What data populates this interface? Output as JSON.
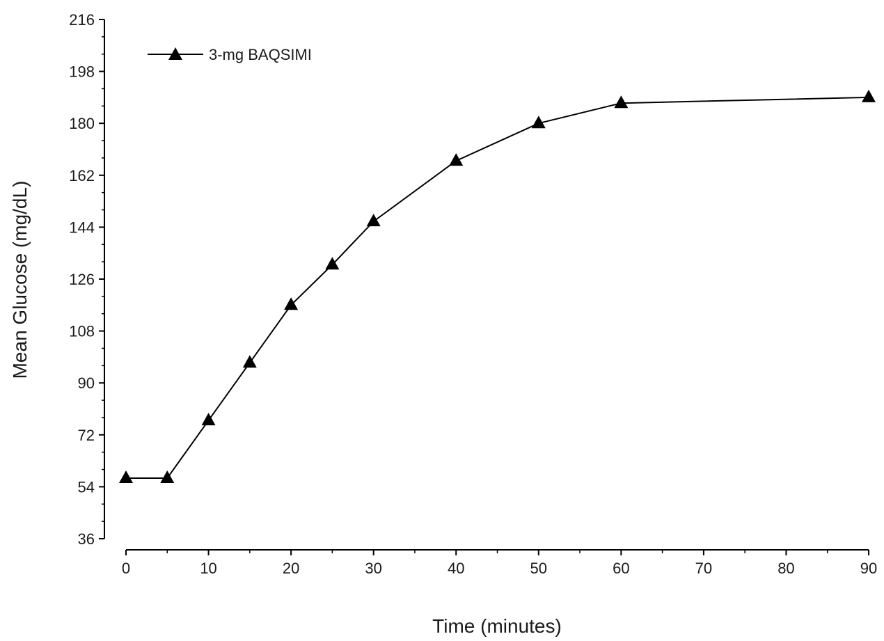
{
  "chart_data": {
    "type": "line",
    "title": "",
    "xlabel": "Time (minutes)",
    "ylabel": "Mean Glucose (mg/dL)",
    "xlim": [
      0,
      90
    ],
    "ylim": [
      36,
      216
    ],
    "xticks": [
      0,
      10,
      20,
      30,
      40,
      50,
      60,
      70,
      80,
      90
    ],
    "yticks": [
      36,
      54,
      72,
      90,
      108,
      126,
      144,
      162,
      180,
      198,
      216
    ],
    "grid": false,
    "legend": {
      "position": "top-left",
      "entries": [
        "3-mg BAQSIMI"
      ]
    },
    "series": [
      {
        "name": "3-mg BAQSIMI",
        "marker": "triangle",
        "color": "#000000",
        "x": [
          0,
          5,
          10,
          15,
          20,
          25,
          30,
          40,
          50,
          60,
          90
        ],
        "y": [
          57,
          57,
          77,
          97,
          117,
          131,
          146,
          167,
          180,
          187,
          189
        ]
      }
    ]
  }
}
